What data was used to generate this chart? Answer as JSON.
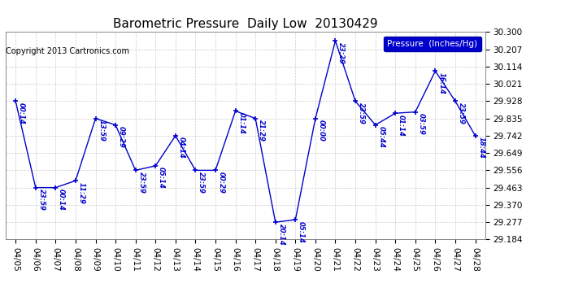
{
  "title": "Barometric Pressure  Daily Low  20130429",
  "copyright": "Copyright 2013 Cartronics.com",
  "legend_label": "Pressure  (Inches/Hg)",
  "background_color": "#ffffff",
  "line_color": "#0000cc",
  "marker_color": "#0000cc",
  "label_color": "#0000cc",
  "grid_color": "#cccccc",
  "dates": [
    "04/05",
    "04/06",
    "04/07",
    "04/08",
    "04/09",
    "04/10",
    "04/11",
    "04/12",
    "04/13",
    "04/14",
    "04/15",
    "04/16",
    "04/17",
    "04/18",
    "04/19",
    "04/20",
    "04/21",
    "04/22",
    "04/23",
    "04/24",
    "04/25",
    "04/26",
    "04/27",
    "04/28"
  ],
  "values": [
    29.928,
    29.463,
    29.463,
    29.5,
    29.835,
    29.8,
    29.556,
    29.58,
    29.742,
    29.556,
    29.556,
    29.875,
    29.835,
    29.277,
    29.29,
    29.835,
    30.253,
    29.928,
    29.8,
    29.863,
    29.87,
    30.09,
    29.928,
    29.742
  ],
  "time_labels": [
    "00:14",
    "23:59",
    "00:14",
    "11:29",
    "13:59",
    "09:29",
    "23:59",
    "05:14",
    "04:14",
    "23:59",
    "00:29",
    "01:14",
    "21:29",
    "20:14",
    "05:14",
    "00:00",
    "23:29",
    "23:59",
    "05:44",
    "01:14",
    "03:59",
    "16:14",
    "23:59",
    "18:44"
  ],
  "ylim_min": 29.184,
  "ylim_max": 30.3,
  "yticks": [
    29.184,
    29.277,
    29.37,
    29.463,
    29.556,
    29.649,
    29.742,
    29.835,
    29.928,
    30.021,
    30.114,
    30.207,
    30.3
  ],
  "title_fontsize": 11,
  "tick_fontsize": 7.5,
  "annotation_fontsize": 6.0,
  "copyright_fontsize": 7.0,
  "legend_fontsize": 7.5
}
